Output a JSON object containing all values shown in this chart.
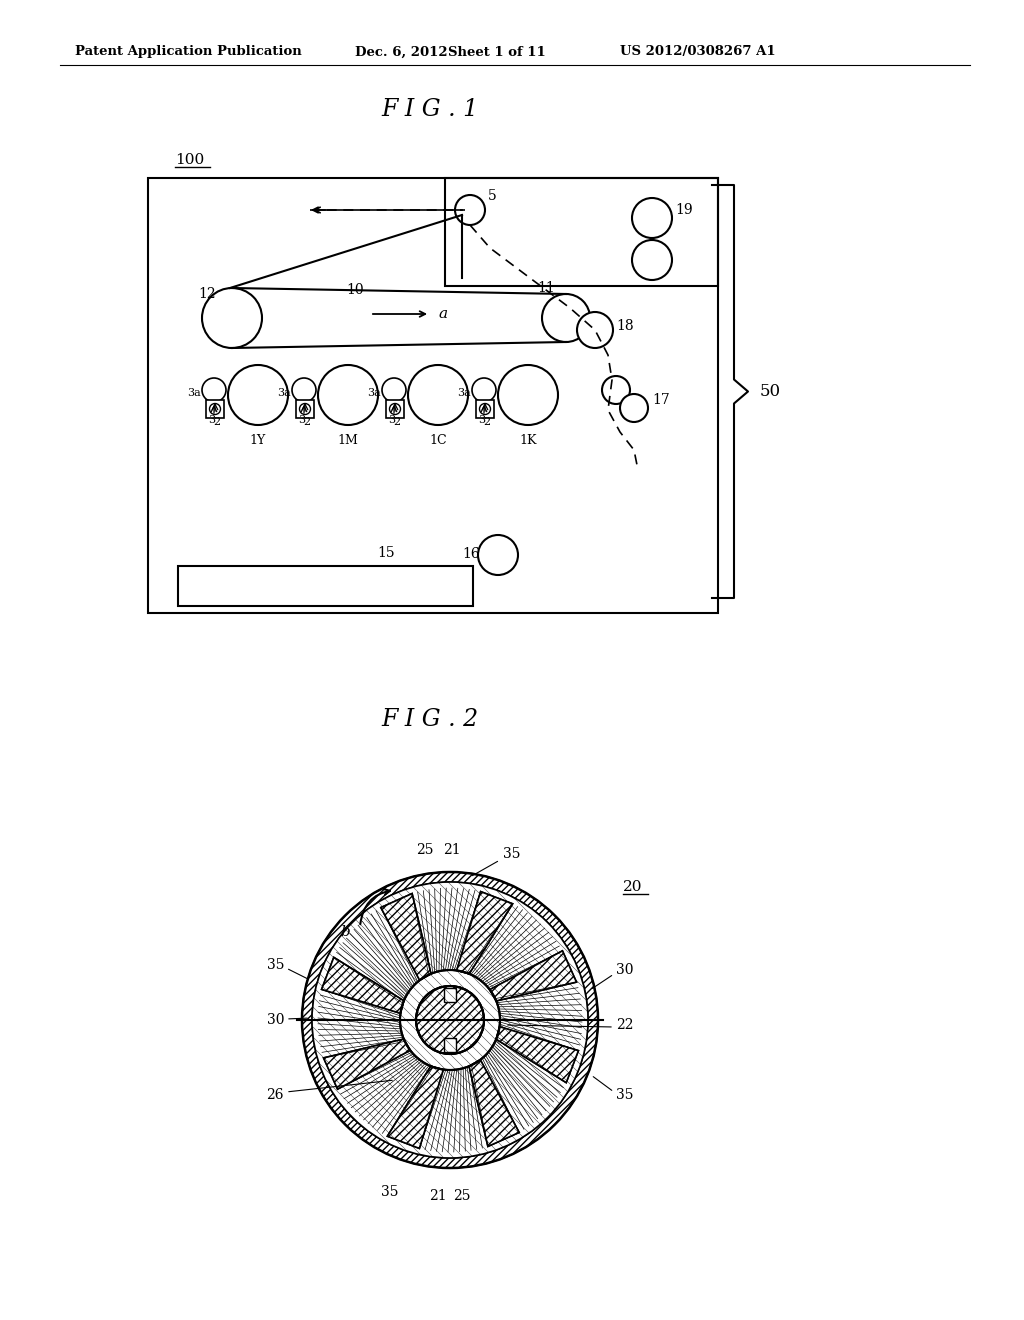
{
  "bg_color": "#ffffff",
  "header_text": "Patent Application Publication",
  "header_date": "Dec. 6, 2012",
  "header_sheet": "Sheet 1 of 11",
  "header_patent": "US 2012/0308267 A1",
  "fig1_title": "F I G . 1",
  "fig2_title": "F I G . 2"
}
